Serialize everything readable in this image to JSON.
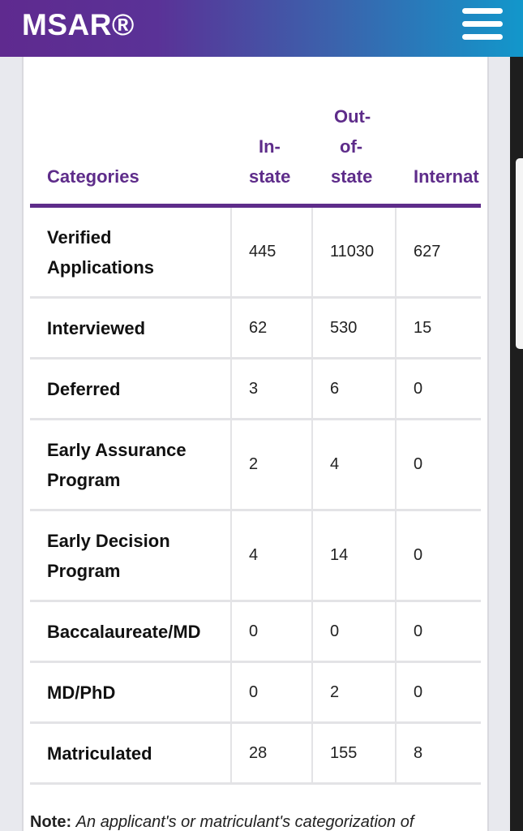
{
  "header": {
    "logo": "MSAR®",
    "menu_icon": "hamburger-menu-icon"
  },
  "table": {
    "headers": {
      "category": "Categories",
      "in_state": [
        "In-",
        "state"
      ],
      "out_of_state": [
        "Out-",
        "of-",
        "state"
      ],
      "international": "Internat"
    },
    "rows": [
      {
        "category": [
          "Verified",
          "Applications"
        ],
        "in_state": "445",
        "out_of_state": "11030",
        "international": "627"
      },
      {
        "category": [
          "Interviewed"
        ],
        "in_state": "62",
        "out_of_state": "530",
        "international": "15"
      },
      {
        "category": [
          "Deferred"
        ],
        "in_state": "3",
        "out_of_state": "6",
        "international": "0"
      },
      {
        "category": [
          "Early Assurance",
          "Program"
        ],
        "in_state": "2",
        "out_of_state": "4",
        "international": "0"
      },
      {
        "category": [
          "Early Decision",
          "Program"
        ],
        "in_state": "4",
        "out_of_state": "14",
        "international": "0"
      },
      {
        "category": [
          "Baccalaureate/MD"
        ],
        "in_state": "0",
        "out_of_state": "0",
        "international": "0"
      },
      {
        "category": [
          "MD/PhD"
        ],
        "in_state": "0",
        "out_of_state": "2",
        "international": "0"
      },
      {
        "category": [
          "Matriculated"
        ],
        "in_state": "28",
        "out_of_state": "155",
        "international": "8"
      }
    ]
  },
  "note": {
    "label": "Note:",
    "text": "An applicant's or matriculant's categorization of"
  }
}
